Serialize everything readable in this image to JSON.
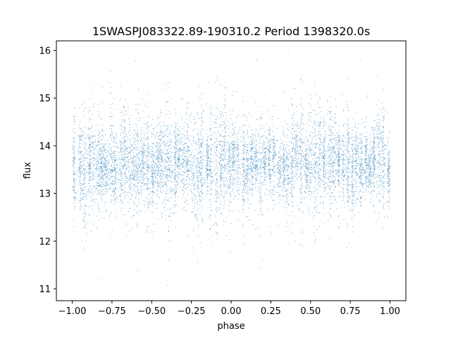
{
  "chart_data": {
    "type": "scatter",
    "title": "1SWASPJ083322.89-190310.2 Period 1398320.0s",
    "xlabel": "phase",
    "ylabel": "flux",
    "xlim": [
      -1.1,
      1.1
    ],
    "ylim": [
      10.75,
      16.2
    ],
    "x_ticks": [
      -1.0,
      -0.75,
      -0.5,
      -0.25,
      0.0,
      0.25,
      0.5,
      0.75,
      1.0
    ],
    "x_tick_labels": [
      "−1.00",
      "−0.75",
      "−0.50",
      "−0.25",
      "0.00",
      "0.25",
      "0.50",
      "0.75",
      "1.00"
    ],
    "y_ticks": [
      11,
      12,
      13,
      14,
      15,
      16
    ],
    "y_tick_labels": [
      "11",
      "12",
      "13",
      "14",
      "15",
      "16"
    ],
    "grid": false,
    "legend": "none",
    "point_color": "#1f77b4",
    "series": [
      {
        "phase_range": [
          -1.0,
          1.0
        ],
        "flux_mean": 13.6,
        "flux_core_range": [
          13.0,
          14.2
        ],
        "flux_extremes": [
          11.0,
          16.0
        ],
        "approx_points": 30000
      }
    ]
  }
}
